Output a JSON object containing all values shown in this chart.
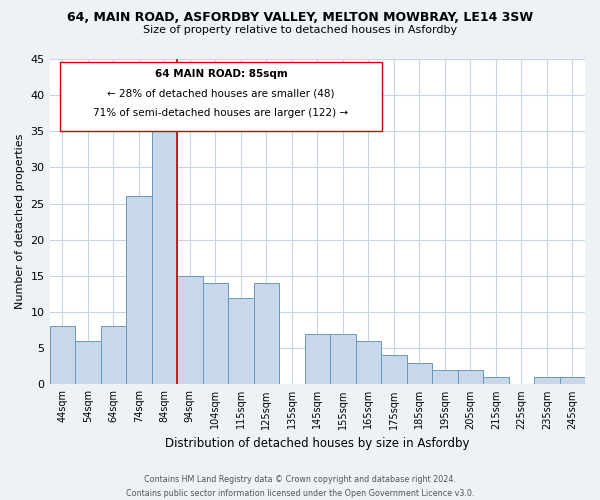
{
  "title": "64, MAIN ROAD, ASFORDBY VALLEY, MELTON MOWBRAY, LE14 3SW",
  "subtitle": "Size of property relative to detached houses in Asfordby",
  "xlabel": "Distribution of detached houses by size in Asfordby",
  "ylabel": "Number of detached properties",
  "bar_labels": [
    "44sqm",
    "54sqm",
    "64sqm",
    "74sqm",
    "84sqm",
    "94sqm",
    "104sqm",
    "115sqm",
    "125sqm",
    "135sqm",
    "145sqm",
    "155sqm",
    "165sqm",
    "175sqm",
    "185sqm",
    "195sqm",
    "205sqm",
    "215sqm",
    "225sqm",
    "235sqm",
    "245sqm"
  ],
  "bar_values": [
    8,
    6,
    8,
    26,
    35,
    15,
    14,
    12,
    14,
    0,
    7,
    7,
    6,
    4,
    3,
    2,
    2,
    1,
    0,
    1,
    1
  ],
  "bar_color": "#c8d8ea",
  "bar_edge_color": "#6699bb",
  "ylim": [
    0,
    45
  ],
  "yticks": [
    0,
    5,
    10,
    15,
    20,
    25,
    30,
    35,
    40,
    45
  ],
  "vline_color": "#cc0000",
  "annotation_title": "64 MAIN ROAD: 85sqm",
  "annotation_line1": "← 28% of detached houses are smaller (48)",
  "annotation_line2": "71% of semi-detached houses are larger (122) →",
  "annotation_box_color": "#ffffff",
  "annotation_box_edge": "#cc0000",
  "footer_line1": "Contains HM Land Registry data © Crown copyright and database right 2024.",
  "footer_line2": "Contains public sector information licensed under the Open Government Licence v3.0.",
  "background_color": "#eef2f6",
  "plot_background_color": "#ffffff",
  "grid_color": "#c8d4e0"
}
